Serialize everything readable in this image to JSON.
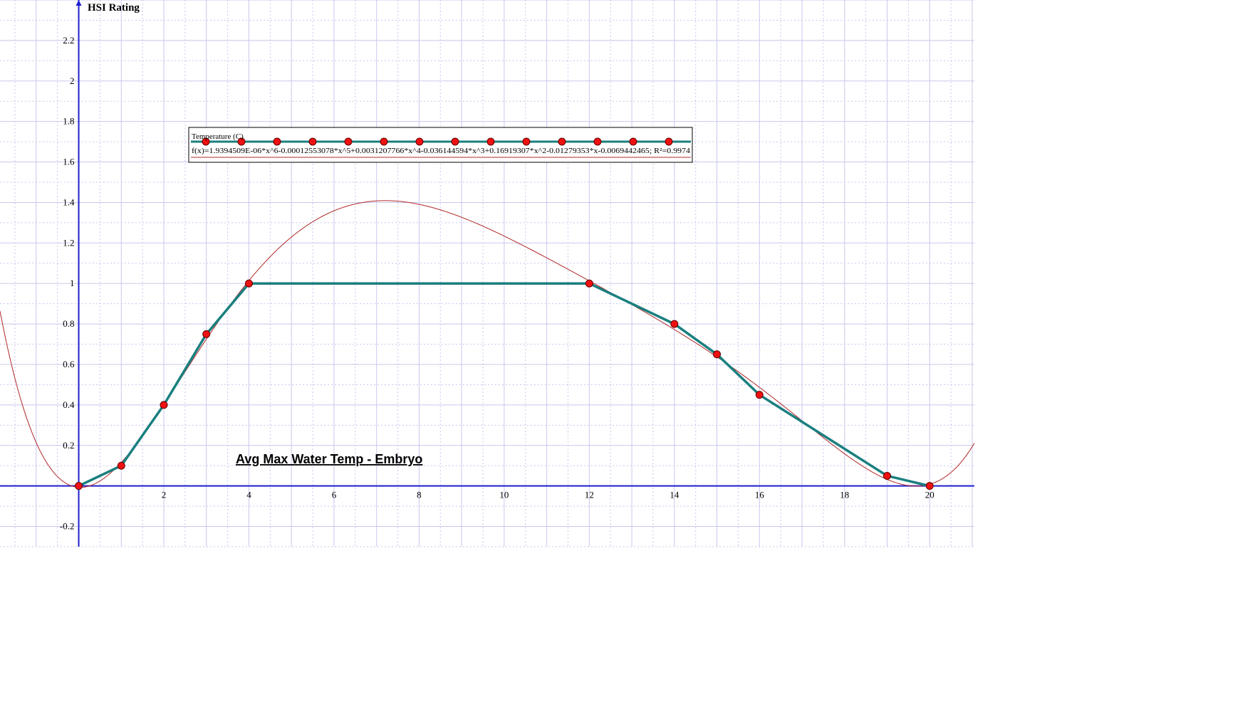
{
  "chart_data": {
    "type": "line",
    "title": "Avg Max Water Temp - Embryo",
    "xlabel": "",
    "ylabel": "HSI Rating",
    "xlim": [
      -1.85,
      21.05
    ],
    "ylim": [
      -0.3,
      2.4
    ],
    "x_ticks": [
      "2",
      "4",
      "6",
      "8",
      "10",
      "12",
      "14",
      "16",
      "18",
      "20"
    ],
    "y_ticks": [
      "-0.2",
      "0.2",
      "0.4",
      "0.6",
      "0.8",
      "1",
      "1.2",
      "1.4",
      "1.6",
      "1.8",
      "2",
      "2.2"
    ],
    "grid": true,
    "series": [
      {
        "name": "Temperature (C)",
        "color": "#1a7f7f",
        "x": [
          0,
          1,
          2,
          3,
          4,
          12,
          14,
          15,
          16,
          19,
          20
        ],
        "y": [
          0,
          0.1,
          0.4,
          0.75,
          1,
          1,
          0.8,
          0.65,
          0.45,
          0.05,
          0
        ]
      }
    ],
    "trendline": {
      "label": "f(x)=1.9394509E-06*x^6-0.00012553078*x^5+0.0031207766*x^4-0.036144594*x^3+0.16919307*x^2-0.01279353*x-0.0069442465; R²=0.9974",
      "color": "#b02828",
      "coefficients": [
        -0.0069442465,
        -0.01279353,
        0.16919307,
        -0.036144594,
        0.0031207766,
        -0.00012553078,
        1.9394509e-06
      ]
    },
    "legend_placement": "top-center",
    "colors": {
      "grid": "#c8c8ee",
      "axis": "#1f1fd0",
      "marker": "#ee1111"
    }
  }
}
